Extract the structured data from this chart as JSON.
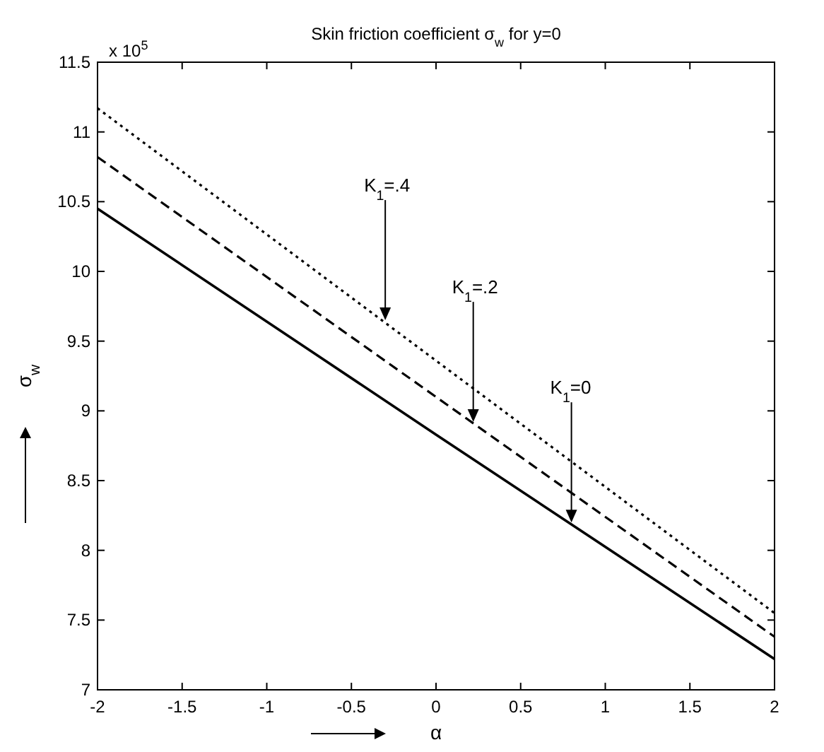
{
  "chart_data": {
    "type": "line",
    "title": "Skin friction coefficient σ$_{w}$ for y=0",
    "xlabel": "α",
    "ylabel": "σ$_{w}$",
    "x": [
      -2,
      0,
      2
    ],
    "series": [
      {
        "color": "#000000",
        "line_style": "solid",
        "values": [
          10.45,
          8.83,
          7.22
        ]
      },
      {
        "color": "#000000",
        "line_style": "dashed",
        "values": [
          10.82,
          9.1,
          7.38
        ]
      },
      {
        "color": "#000000",
        "line_style": "dotted",
        "values": [
          11.17,
          9.36,
          7.55
        ]
      }
    ],
    "xlim": [
      -2,
      2
    ],
    "xticks": [
      -2,
      -1.5,
      -1,
      -0.5,
      0,
      0.5,
      1,
      1.5,
      2
    ],
    "ylim": [
      7,
      11.5
    ],
    "yticks": [
      7,
      7.5,
      8,
      8.5,
      9,
      9.5,
      10,
      10.5,
      11,
      11.5
    ],
    "grid": false,
    "marker": "none",
    "annotations": [
      "x 10$^{5}$",
      {
        "text": "K$_{1}$=.4",
        "x": -0.3,
        "y": 9.65
      },
      {
        "text": "K$_{1}$=.2",
        "x": 0.22,
        "y": 8.92
      },
      {
        "text": "K$_{1}$=0",
        "x": 0.8,
        "y": 8.2
      }
    ]
  }
}
